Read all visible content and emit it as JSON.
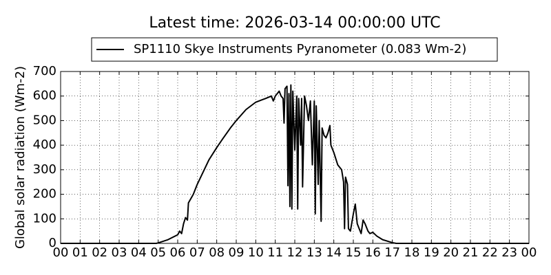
{
  "chart_data": {
    "type": "line",
    "title": "Latest time: 2026-03-14 00:00:00 UTC",
    "ylabel": "Global solar radiation (Wm-2)",
    "x": [
      0,
      4.9,
      5.0,
      5.5,
      6.0,
      6.1,
      6.2,
      6.3,
      6.4,
      6.5,
      6.55,
      6.8,
      7.0,
      7.3,
      7.6,
      8.0,
      8.3,
      8.7,
      9.0,
      9.5,
      10.0,
      10.5,
      10.8,
      10.9,
      11.0,
      11.2,
      11.3,
      11.4,
      11.45,
      11.5,
      11.6,
      11.65,
      11.7,
      11.75,
      11.8,
      11.85,
      11.9,
      12.0,
      12.1,
      12.15,
      12.2,
      12.3,
      12.35,
      12.4,
      12.5,
      12.6,
      12.7,
      12.8,
      12.9,
      13.0,
      13.05,
      13.1,
      13.2,
      13.25,
      13.35,
      13.4,
      13.5,
      13.6,
      13.7,
      13.8,
      13.85,
      14.0,
      14.2,
      14.4,
      14.5,
      14.55,
      14.6,
      14.7,
      14.75,
      14.85,
      15.0,
      15.1,
      15.2,
      15.3,
      15.4,
      15.5,
      15.6,
      15.75,
      15.85,
      16.0,
      16.2,
      16.5,
      17.0,
      17.2,
      24
    ],
    "series": [
      {
        "name": "SP1110 Skye Instruments Pyranometer (0.083 Wm-2)",
        "color": "#000000",
        "values": [
          0,
          0,
          2,
          15,
          35,
          50,
          40,
          80,
          105,
          95,
          165,
          200,
          240,
          290,
          340,
          390,
          425,
          470,
          500,
          545,
          575,
          590,
          600,
          580,
          600,
          620,
          600,
          590,
          490,
          630,
          640,
          235,
          610,
          150,
          645,
          140,
          620,
          380,
          600,
          140,
          590,
          400,
          590,
          230,
          600,
          560,
          500,
          580,
          320,
          580,
          120,
          560,
          240,
          500,
          90,
          470,
          440,
          430,
          450,
          480,
          400,
          370,
          320,
          300,
          250,
          60,
          270,
          240,
          60,
          50,
          120,
          160,
          80,
          60,
          40,
          95,
          80,
          50,
          40,
          45,
          30,
          15,
          3,
          0,
          0
        ]
      }
    ],
    "xlim": [
      0,
      24
    ],
    "xticks": [
      {
        "value": 0,
        "label": "00"
      },
      {
        "value": 1,
        "label": "01"
      },
      {
        "value": 2,
        "label": "02"
      },
      {
        "value": 3,
        "label": "03"
      },
      {
        "value": 4,
        "label": "04"
      },
      {
        "value": 5,
        "label": "05"
      },
      {
        "value": 6,
        "label": "06"
      },
      {
        "value": 7,
        "label": "07"
      },
      {
        "value": 8,
        "label": "08"
      },
      {
        "value": 9,
        "label": "09"
      },
      {
        "value": 10,
        "label": "10"
      },
      {
        "value": 11,
        "label": "11"
      },
      {
        "value": 12,
        "label": "12"
      },
      {
        "value": 13,
        "label": "13"
      },
      {
        "value": 14,
        "label": "14"
      },
      {
        "value": 15,
        "label": "15"
      },
      {
        "value": 16,
        "label": "16"
      },
      {
        "value": 17,
        "label": "17"
      },
      {
        "value": 18,
        "label": "18"
      },
      {
        "value": 19,
        "label": "19"
      },
      {
        "value": 20,
        "label": "20"
      },
      {
        "value": 21,
        "label": "21"
      },
      {
        "value": 22,
        "label": "22"
      },
      {
        "value": 23,
        "label": "23"
      },
      {
        "value": 24,
        "label": "00"
      }
    ],
    "ylim": [
      0,
      700
    ],
    "yticks": [
      0,
      100,
      200,
      300,
      400,
      500,
      600,
      700
    ],
    "grid": true,
    "legend": "top"
  }
}
